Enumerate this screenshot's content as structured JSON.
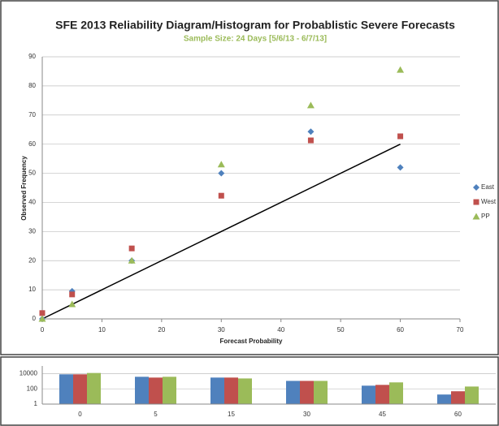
{
  "chart_data": [
    {
      "type": "scatter",
      "title": "SFE 2013 Reliability Diagram/Histogram for Probablistic Severe Forecasts",
      "subtitle": "Sample Size: 24 Days [5/6/13 - 6/7/13]",
      "x_label": "Forecast Probability",
      "y_label": "Observed Frequency",
      "x": [
        0,
        5,
        15,
        30,
        45,
        60
      ],
      "series": [
        {
          "name": "East",
          "color": "#4f81bd",
          "marker": "diamond",
          "values": [
            0,
            9.5,
            20,
            50,
            64.3,
            52
          ]
        },
        {
          "name": "West",
          "color": "#c0504d",
          "marker": "square",
          "values": [
            2,
            8.4,
            24.2,
            42.3,
            61.3,
            62.7
          ]
        },
        {
          "name": "PP",
          "color": "#9bbb59",
          "marker": "triangle",
          "values": [
            0,
            5,
            20,
            53,
            73.3,
            85.5
          ]
        }
      ],
      "reference_line": {
        "x": [
          0,
          60
        ],
        "y": [
          0,
          60
        ],
        "color": "#000000"
      },
      "xlim": [
        0,
        70
      ],
      "xticks": [
        0,
        10,
        20,
        30,
        40,
        50,
        60,
        70
      ],
      "ylim": [
        0,
        90
      ],
      "yticks": [
        0,
        10,
        20,
        30,
        40,
        50,
        60,
        70,
        80,
        90
      ],
      "grid": true,
      "legend": "right"
    },
    {
      "type": "bar",
      "categories": [
        "0",
        "5",
        "15",
        "30",
        "45",
        "60"
      ],
      "series": [
        {
          "color": "#4f81bd",
          "values": [
            8000,
            3800,
            3000,
            1100,
            260,
            18
          ]
        },
        {
          "color": "#c0504d",
          "values": [
            8000,
            3000,
            3000,
            1100,
            330,
            48
          ]
        },
        {
          "color": "#9bbb59",
          "values": [
            12000,
            3800,
            2300,
            1100,
            700,
            200
          ]
        }
      ],
      "log_scale": true,
      "ylim": [
        1,
        100000
      ],
      "yticks": [
        1,
        100,
        10000
      ],
      "grid": true
    }
  ]
}
